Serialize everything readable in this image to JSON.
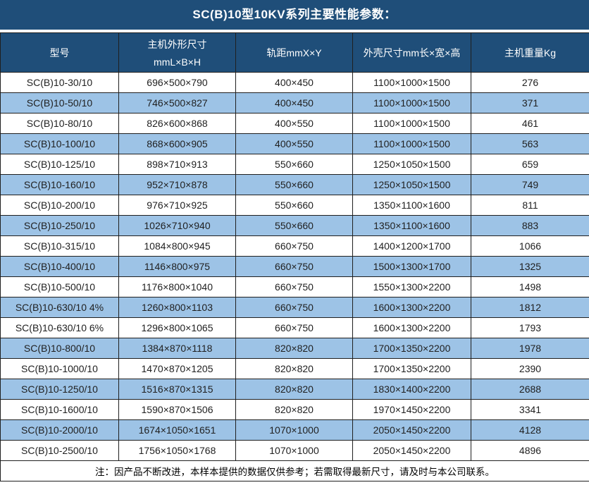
{
  "title": "SC(B)10型10KV系列主要性能参数：",
  "table": {
    "columns": [
      {
        "label": "型号"
      },
      {
        "label": "主机外形尺寸",
        "sub": "mmL×B×H"
      },
      {
        "label": "轨距mmX×Y"
      },
      {
        "label": "外壳尺寸mm长×宽×高"
      },
      {
        "label": "主机重量Kg"
      }
    ],
    "rows": [
      [
        "SC(B)10-30/10",
        "696×500×790",
        "400×450",
        "1100×1000×1500",
        "276"
      ],
      [
        "SC(B)10-50/10",
        "746×500×827",
        "400×450",
        "1100×1000×1500",
        "371"
      ],
      [
        "SC(B)10-80/10",
        "826×600×868",
        "400×550",
        "1100×1000×1500",
        "461"
      ],
      [
        "SC(B)10-100/10",
        "868×600×905",
        "400×550",
        "1100×1000×1500",
        "563"
      ],
      [
        "SC(B)10-125/10",
        "898×710×913",
        "550×660",
        "1250×1050×1500",
        "659"
      ],
      [
        "SC(B)10-160/10",
        "952×710×878",
        "550×660",
        "1250×1050×1500",
        "749"
      ],
      [
        "SC(B)10-200/10",
        "976×710×925",
        "550×660",
        "1350×1100×1600",
        "811"
      ],
      [
        "SC(B)10-250/10",
        "1026×710×940",
        "550×660",
        "1350×1100×1600",
        "883"
      ],
      [
        "SC(B)10-315/10",
        "1084×800×945",
        "660×750",
        "1400×1200×1700",
        "1066"
      ],
      [
        "SC(B)10-400/10",
        "1146×800×975",
        "660×750",
        "1500×1300×1700",
        "1325"
      ],
      [
        "SC(B)10-500/10",
        "1176×800×1040",
        "660×750",
        "1550×1300×2200",
        "1498"
      ],
      [
        "SC(B)10-630/10 4%",
        "1260×800×1103",
        "660×750",
        "1600×1300×2200",
        "1812"
      ],
      [
        "SC(B)10-630/10 6%",
        "1296×800×1065",
        "660×750",
        "1600×1300×2200",
        "1793"
      ],
      [
        "SC(B)10-800/10",
        "1384×870×1118",
        "820×820",
        "1700×1350×2200",
        "1978"
      ],
      [
        "SC(B)10-1000/10",
        "1470×870×1205",
        "820×820",
        "1700×1350×2200",
        "2390"
      ],
      [
        "SC(B)10-1250/10",
        "1516×870×1315",
        "820×820",
        "1830×1400×2200",
        "2688"
      ],
      [
        "SC(B)10-1600/10",
        "1590×870×1506",
        "820×820",
        "1970×1450×2200",
        "3341"
      ],
      [
        "SC(B)10-2000/10",
        "1674×1050×1651",
        "1070×1000",
        "2050×1450×2200",
        "4128"
      ],
      [
        "SC(B)10-2500/10",
        "1756×1050×1768",
        "1070×1000",
        "2050×1450×2200",
        "4896"
      ]
    ]
  },
  "footer_note": "注：因产品不断改进，本样本提供的数据仅供参考；若需取得最新尺寸，请及时与本公司联系。",
  "colors": {
    "header_bg": "#1F4E79",
    "row_alt_bg": "#9DC3E6",
    "border": "#1F1F1F",
    "text": "#1F1F1F"
  }
}
